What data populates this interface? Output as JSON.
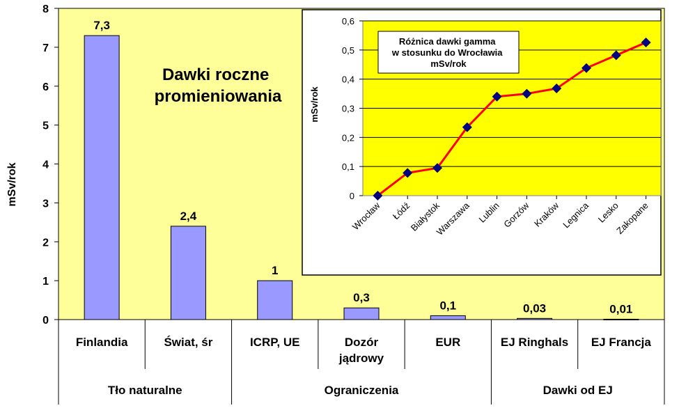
{
  "chart_data": [
    {
      "type": "bar",
      "title_lines": [
        "Dawki roczne",
        "promieniowania"
      ],
      "ylabel": "mSv/rok",
      "ylim": [
        0,
        8
      ],
      "yticks": [
        "0",
        "1",
        "2",
        "3",
        "4",
        "5",
        "6",
        "7",
        "8"
      ],
      "categories": [
        [
          "Finlandia"
        ],
        [
          "Świat, śr"
        ],
        [
          "ICRP, UE"
        ],
        [
          "Dozór",
          "jądrowy"
        ],
        [
          "EUR"
        ],
        [
          "EJ Ringhals"
        ],
        [
          "EJ Francja"
        ]
      ],
      "values": [
        7.3,
        2.4,
        1,
        0.3,
        0.1,
        0.03,
        0.01
      ],
      "value_labels": [
        "7,3",
        "2,4",
        "1",
        "0,3",
        "0,1",
        "0,03",
        "0,01"
      ],
      "groups": [
        {
          "label": "Tło naturalne",
          "span": 2
        },
        {
          "label": "Ograniczenia",
          "span": 3
        },
        {
          "label": "Dawki od EJ",
          "span": 2
        }
      ],
      "colors": {
        "plot_bg": "#ffff99",
        "bar": "#9999ff",
        "bar_edge": "#000000"
      },
      "grid": false
    },
    {
      "type": "line",
      "title_lines": [
        "Różnica dawki gamma",
        "w stosunku do Wrocławia",
        "mSv/rok"
      ],
      "ylabel": "mSv/rok",
      "ylim": [
        0,
        0.6
      ],
      "yticks": [
        "0",
        "0,1",
        "0,2",
        "0,3",
        "0,4",
        "0,5",
        "0,6"
      ],
      "categories": [
        "Wrocław",
        "Łódź",
        "Białystok",
        "Warszawa",
        "Lublin",
        "Gorzów",
        "Kraków",
        "Legnica",
        "Lesko",
        "Zakopane"
      ],
      "values": [
        0,
        0.078,
        0.095,
        0.235,
        0.34,
        0.35,
        0.368,
        0.438,
        0.482,
        0.526
      ],
      "colors": {
        "plot_bg": "#ffff00",
        "line": "#ff0000",
        "marker": "#000080"
      },
      "grid": true
    }
  ]
}
